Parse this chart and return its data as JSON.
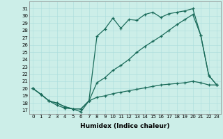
{
  "xlabel": "Humidex (Indice chaleur)",
  "background_color": "#cceee8",
  "grid_color": "#aadddd",
  "line_color": "#1a6b5a",
  "xlim": [
    -0.5,
    23.5
  ],
  "ylim": [
    16.5,
    32.0
  ],
  "xticks": [
    0,
    1,
    2,
    3,
    4,
    5,
    6,
    7,
    8,
    9,
    10,
    11,
    12,
    13,
    14,
    15,
    16,
    17,
    18,
    19,
    20,
    21,
    22,
    23
  ],
  "yticks": [
    17,
    18,
    19,
    20,
    21,
    22,
    23,
    24,
    25,
    26,
    27,
    28,
    29,
    30,
    31
  ],
  "line1_x": [
    0,
    1,
    2,
    3,
    4,
    5,
    6,
    7,
    8,
    9,
    10,
    11,
    12,
    13,
    14,
    15,
    16,
    17,
    18,
    19,
    20,
    21,
    22,
    23
  ],
  "line1_y": [
    20.0,
    19.2,
    18.3,
    17.7,
    17.3,
    17.2,
    16.8,
    18.3,
    27.2,
    28.2,
    29.7,
    28.3,
    29.5,
    29.4,
    30.2,
    30.5,
    29.8,
    30.3,
    30.5,
    30.7,
    31.0,
    27.3,
    21.8,
    20.5
  ],
  "line2_x": [
    0,
    1,
    2,
    3,
    4,
    5,
    6,
    7,
    8,
    9,
    10,
    11,
    12,
    13,
    14,
    15,
    16,
    17,
    18,
    19,
    20,
    21,
    22,
    23
  ],
  "line2_y": [
    20.0,
    19.2,
    18.3,
    18.0,
    17.5,
    17.2,
    17.2,
    18.3,
    20.8,
    21.5,
    22.5,
    23.2,
    24.0,
    25.0,
    25.8,
    26.5,
    27.2,
    28.0,
    28.8,
    29.5,
    30.2,
    27.3,
    21.8,
    20.5
  ],
  "line3_x": [
    0,
    1,
    2,
    3,
    4,
    5,
    6,
    7,
    8,
    9,
    10,
    11,
    12,
    13,
    14,
    15,
    16,
    17,
    18,
    19,
    20,
    21,
    22,
    23
  ],
  "line3_y": [
    20.0,
    19.2,
    18.3,
    18.0,
    17.5,
    17.2,
    17.2,
    18.3,
    18.8,
    19.0,
    19.3,
    19.5,
    19.7,
    19.9,
    20.1,
    20.3,
    20.5,
    20.6,
    20.7,
    20.8,
    21.0,
    20.8,
    20.5,
    20.5
  ],
  "tick_fontsize": 5.0,
  "xlabel_fontsize": 6.5
}
